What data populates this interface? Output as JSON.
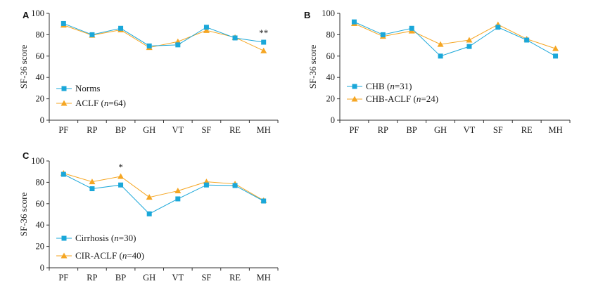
{
  "colors": {
    "series1": "#1aa7d9",
    "series2": "#f5a623",
    "marker1": "#1aa7d9",
    "marker2": "#f5a623",
    "axis": "#333333"
  },
  "chart_data": [
    {
      "type": "line",
      "panel": "A",
      "categories": [
        "PF",
        "RP",
        "BP",
        "GH",
        "VT",
        "SF",
        "RE",
        "MH"
      ],
      "ylabel": "SF-36 score",
      "ylim": [
        0,
        100
      ],
      "yticks": [
        0,
        20,
        40,
        60,
        80,
        100
      ],
      "legend_placement": "bottom-left",
      "series": [
        {
          "name": "Norms",
          "name_parts": [
            {
              "t": "Norms",
              "i": false
            }
          ],
          "marker": "square",
          "values": [
            90.5,
            80,
            86,
            69.5,
            70.5,
            87,
            77,
            73
          ]
        },
        {
          "name": "ACLF (n=64)",
          "name_parts": [
            {
              "t": "ACLF (",
              "i": false
            },
            {
              "t": "n",
              "i": true
            },
            {
              "t": "=64)",
              "i": false
            }
          ],
          "marker": "triangle",
          "values": [
            89,
            79.5,
            84.5,
            68,
            73.5,
            84,
            77.5,
            65
          ]
        }
      ],
      "annotations": [
        {
          "category": "MH",
          "text": "**"
        }
      ]
    },
    {
      "type": "line",
      "panel": "B",
      "categories": [
        "PF",
        "RP",
        "BP",
        "GH",
        "VT",
        "SF",
        "RE",
        "MH"
      ],
      "ylabel": "SF-36 score",
      "ylim": [
        0,
        100
      ],
      "yticks": [
        0,
        20,
        40,
        60,
        80,
        100
      ],
      "legend_placement": "bottom-left",
      "series": [
        {
          "name": "CHB (n=31)",
          "name_parts": [
            {
              "t": "CHB (",
              "i": false
            },
            {
              "t": "n",
              "i": true
            },
            {
              "t": "=31)",
              "i": false
            }
          ],
          "marker": "square",
          "values": [
            92,
            80,
            86,
            60,
            69,
            87,
            75,
            60
          ]
        },
        {
          "name": "CHB-ACLF (n=24)",
          "name_parts": [
            {
              "t": "CHB-ACLF (",
              "i": false
            },
            {
              "t": "n",
              "i": true
            },
            {
              "t": "=24)",
              "i": false
            }
          ],
          "marker": "triangle",
          "values": [
            90.5,
            78.5,
            83.5,
            71,
            75,
            89.5,
            76,
            67
          ]
        }
      ],
      "annotations": []
    },
    {
      "type": "line",
      "panel": "C",
      "categories": [
        "PF",
        "RP",
        "BP",
        "GH",
        "VT",
        "SF",
        "RE",
        "MH"
      ],
      "ylabel": "SF-36 score",
      "ylim": [
        0,
        100
      ],
      "yticks": [
        0,
        20,
        40,
        60,
        80,
        100
      ],
      "legend_placement": "bottom-left",
      "series": [
        {
          "name": "Cirrhosis (n=30)",
          "name_parts": [
            {
              "t": "Cirrhosis (",
              "i": false
            },
            {
              "t": "n",
              "i": true
            },
            {
              "t": "=30)",
              "i": false
            }
          ],
          "marker": "square",
          "values": [
            87.5,
            74,
            77.5,
            50.5,
            64.5,
            77.5,
            77,
            62.5
          ]
        },
        {
          "name": "CIR-ACLF (n=40)",
          "name_parts": [
            {
              "t": "CIR-ACLF (",
              "i": false
            },
            {
              "t": "n",
              "i": true
            },
            {
              "t": "=40)",
              "i": false
            }
          ],
          "marker": "triangle",
          "values": [
            88.5,
            80.5,
            85.5,
            66,
            72,
            80.5,
            78.5,
            63
          ]
        }
      ],
      "annotations": [
        {
          "category": "BP",
          "text": "*"
        }
      ]
    }
  ]
}
